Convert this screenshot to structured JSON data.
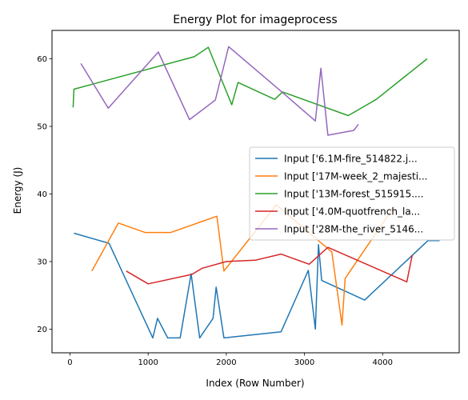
{
  "chart_data": {
    "type": "line",
    "title": "Energy Plot for imageprocess",
    "xlabel": "Index (Row Number)",
    "ylabel": "Energy (J)",
    "xlim": [
      -230,
      4980
    ],
    "ylim": [
      16.5,
      64.2
    ],
    "xticks": [
      0,
      1000,
      2000,
      3000,
      4000
    ],
    "yticks": [
      20,
      30,
      40,
      50,
      60
    ],
    "legend_position": "center-right",
    "series": [
      {
        "name": "Input ['6.1M-fire_514822.j...",
        "color": "#1f77b4",
        "x": [
          50,
          500,
          1060,
          1120,
          1250,
          1410,
          1550,
          1660,
          1830,
          1870,
          1970,
          2700,
          3050,
          3140,
          3180,
          3220,
          3770,
          4580,
          4730
        ],
        "y": [
          34.2,
          32.7,
          18.7,
          21.6,
          18.7,
          18.7,
          28.2,
          18.7,
          21.6,
          26.2,
          18.7,
          19.6,
          28.7,
          20.0,
          32.5,
          27.2,
          24.3,
          33.1,
          33.1
        ]
      },
      {
        "name": "Input ['17M-week_2_majesti...",
        "color": "#ff7f0e",
        "x": [
          280,
          620,
          960,
          1290,
          1880,
          1970,
          2640,
          3350,
          3480,
          3520,
          4150
        ],
        "y": [
          28.6,
          35.7,
          34.3,
          34.3,
          36.7,
          28.6,
          38.4,
          31.4,
          20.6,
          27.5,
          38.2
        ]
      },
      {
        "name": "Input ['13M-forest_515915....",
        "color": "#2ca02c",
        "x": [
          40,
          50,
          1590,
          1770,
          2070,
          2150,
          2620,
          2720,
          3560,
          3920,
          4570
        ],
        "y": [
          52.8,
          55.5,
          60.3,
          61.7,
          53.2,
          56.5,
          54.0,
          55.1,
          51.6,
          54.0,
          60.0
        ]
      },
      {
        "name": "Input ['4.0M-quotfrench_la...",
        "color": "#d62728",
        "x": [
          720,
          1000,
          1560,
          1690,
          2000,
          2370,
          2700,
          3060,
          3300,
          4310,
          4380
        ],
        "y": [
          28.6,
          26.7,
          28.1,
          29.0,
          30.0,
          30.2,
          31.1,
          29.6,
          32.1,
          27.0,
          31.0
        ]
      },
      {
        "name": "Input ['28M-the_river_5146...",
        "color": "#9467bd",
        "x": [
          140,
          490,
          1130,
          1530,
          1860,
          2030,
          2720,
          3140,
          3210,
          3300,
          3630,
          3690
        ],
        "y": [
          59.3,
          52.7,
          61.0,
          51.0,
          53.9,
          61.8,
          55.0,
          50.8,
          58.6,
          48.7,
          49.4,
          50.3
        ]
      }
    ]
  }
}
